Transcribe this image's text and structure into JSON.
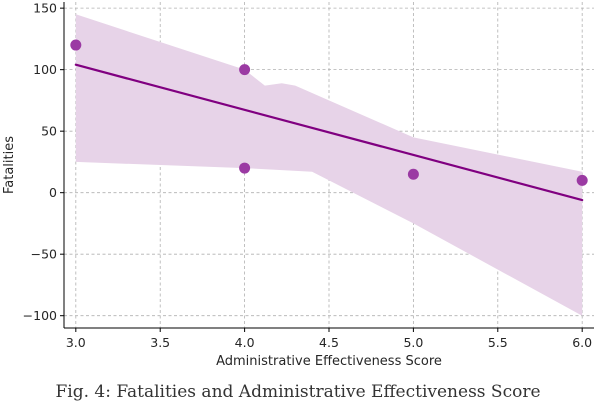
{
  "caption": "Fig. 4: Fatalities and Administrative Effectiveness Score",
  "chart_data": {
    "type": "scatter",
    "xlabel": "Administrative Effectiveness Score",
    "ylabel": "Fatalities",
    "xlim": [
      2.93,
      6.07
    ],
    "ylim": [
      -110,
      155
    ],
    "xticks": [
      3.0,
      3.5,
      4.0,
      4.5,
      5.0,
      5.5,
      6.0
    ],
    "xtick_labels": [
      "3.0",
      "3.5",
      "4.0",
      "4.5",
      "5.0",
      "5.5",
      "6.0"
    ],
    "yticks": [
      -100,
      -50,
      0,
      50,
      100,
      150
    ],
    "ytick_labels": [
      "−100",
      "−50",
      "0",
      "50",
      "100",
      "150"
    ],
    "grid": true,
    "points": {
      "x": [
        3,
        4,
        4,
        5,
        6
      ],
      "y": [
        120,
        100,
        20,
        15,
        10
      ],
      "color": "#9b3aa3"
    },
    "regression_line": {
      "x": [
        3,
        6
      ],
      "y": [
        104,
        -6
      ],
      "color": "#800080"
    },
    "confidence_band": {
      "color": "#e7d3e8",
      "upper": [
        [
          3.0,
          145
        ],
        [
          4.0,
          100
        ],
        [
          4.12,
          87
        ],
        [
          4.22,
          89
        ],
        [
          4.3,
          87
        ],
        [
          5.0,
          45
        ],
        [
          6.0,
          17
        ]
      ],
      "lower": [
        [
          3.0,
          25
        ],
        [
          4.0,
          20
        ],
        [
          4.4,
          17
        ],
        [
          5.0,
          -25
        ],
        [
          6.0,
          -100
        ]
      ]
    }
  }
}
